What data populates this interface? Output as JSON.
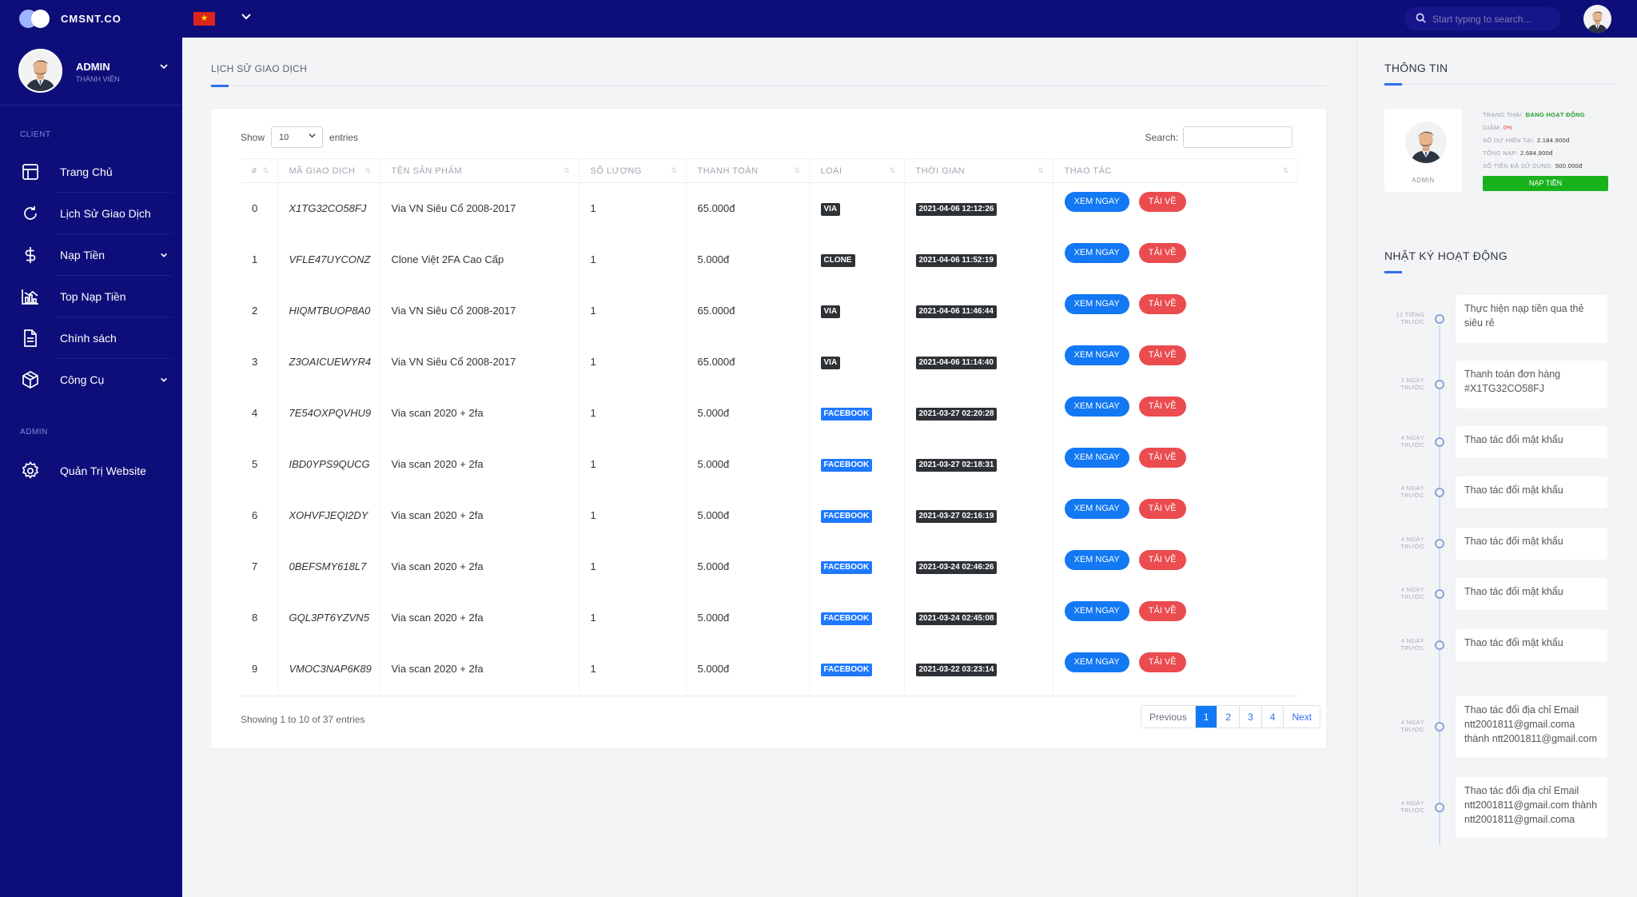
{
  "app": {
    "brand": "CMSNT.CO",
    "search_placeholder": "Start typing to search...",
    "flag_glyph": "★"
  },
  "sidebar": {
    "user_name": "ADMIN",
    "user_role": "THÀNH VIÊN",
    "section_client": "CLIENT",
    "section_admin": "ADMIN",
    "items": [
      {
        "label": "Trang Chủ",
        "icon": "layout-icon"
      },
      {
        "label": "Lịch Sử Giao Dịch",
        "icon": "refresh-icon"
      },
      {
        "label": "Nạp Tiền",
        "icon": "dollar-icon",
        "has_submenu": true
      },
      {
        "label": "Top Nạp Tiền",
        "icon": "bar-chart-icon"
      },
      {
        "label": "Chính sách",
        "icon": "document-icon"
      },
      {
        "label": "Công Cụ",
        "icon": "box-icon",
        "has_submenu": true
      }
    ],
    "admin_items": [
      {
        "label": "Quản Trị Website",
        "icon": "gear-icon"
      }
    ]
  },
  "main": {
    "page_title": "LỊCH SỬ GIAO DỊCH",
    "length_label_pre": "Show",
    "length_value": "10",
    "length_label_post": "entries",
    "search_label": "Search:",
    "columns": [
      "#",
      "MÃ GIAO DỊCH",
      "TÊN SẢN PHẨM",
      "SỐ LƯỢNG",
      "THANH TOÁN",
      "LOẠI",
      "THỜI GIAN",
      "THAO TÁC"
    ],
    "view_label": "XEM NGAY",
    "download_label": "TẢI VỀ",
    "rows": [
      {
        "idx": "0",
        "code": "X1TG32CO58FJ",
        "name": "Via VN Siêu Cổ 2008-2017",
        "qty": "1",
        "pay": "65.000đ",
        "type": "VIA",
        "type_style": "dark",
        "time": "2021-04-06 12:12:26"
      },
      {
        "idx": "1",
        "code": "VFLE47UYCONZ",
        "name": "Clone Việt 2FA Cao Cấp",
        "qty": "1",
        "pay": "5.000đ",
        "type": "CLONE",
        "type_style": "dark",
        "time": "2021-04-06 11:52:19"
      },
      {
        "idx": "2",
        "code": "HIQMTBUOP8A0",
        "name": "Via VN Siêu Cổ 2008-2017",
        "qty": "1",
        "pay": "65.000đ",
        "type": "VIA",
        "type_style": "dark",
        "time": "2021-04-06 11:46:44"
      },
      {
        "idx": "3",
        "code": "Z3OAICUEWYR4",
        "name": "Via VN Siêu Cổ 2008-2017",
        "qty": "1",
        "pay": "65.000đ",
        "type": "VIA",
        "type_style": "dark",
        "time": "2021-04-06 11:14:40"
      },
      {
        "idx": "4",
        "code": "7E54OXPQVHU9",
        "name": "Via scan 2020 + 2fa",
        "qty": "1",
        "pay": "5.000đ",
        "type": "FACEBOOK",
        "type_style": "blue",
        "time": "2021-03-27 02:20:28"
      },
      {
        "idx": "5",
        "code": "IBD0YPS9QUCG",
        "name": "Via scan 2020 + 2fa",
        "qty": "1",
        "pay": "5.000đ",
        "type": "FACEBOOK",
        "type_style": "blue",
        "time": "2021-03-27 02:18:31"
      },
      {
        "idx": "6",
        "code": "XOHVFJEQI2DY",
        "name": "Via scan 2020 + 2fa",
        "qty": "1",
        "pay": "5.000đ",
        "type": "FACEBOOK",
        "type_style": "blue",
        "time": "2021-03-27 02:16:19"
      },
      {
        "idx": "7",
        "code": "0BEFSMY618L7",
        "name": "Via scan 2020 + 2fa",
        "qty": "1",
        "pay": "5.000đ",
        "type": "FACEBOOK",
        "type_style": "blue",
        "time": "2021-03-24 02:46:26"
      },
      {
        "idx": "8",
        "code": "GQL3PT6YZVN5",
        "name": "Via scan 2020 + 2fa",
        "qty": "1",
        "pay": "5.000đ",
        "type": "FACEBOOK",
        "type_style": "blue",
        "time": "2021-03-24 02:45:08"
      },
      {
        "idx": "9",
        "code": "VMOC3NAP6K89",
        "name": "Via scan 2020 + 2fa",
        "qty": "1",
        "pay": "5.000đ",
        "type": "FACEBOOK",
        "type_style": "blue",
        "time": "2021-03-22 03:23:14"
      }
    ],
    "info_text": "Showing 1 to 10 of 37 entries",
    "pagination": {
      "previous": "Previous",
      "pages": [
        "1",
        "2",
        "3",
        "4"
      ],
      "active_page": "1",
      "next": "Next"
    }
  },
  "right_panel": {
    "info_title": "THÔNG TIN",
    "profile_name": "ADMIN",
    "status_label": "TRẠNG THÁI:",
    "status_value": "ĐANG HOẠT ĐỘNG",
    "discount_label": "GIẢM:",
    "discount_value": "0%",
    "balance_label": "SỐ DƯ HIỆN TẠI:",
    "balance_value": "2.184.900đ",
    "total_topup_label": "TỔNG NẠP:",
    "total_topup_value": "2.684.900đ",
    "spent_label": "SỐ TIỀN ĐÃ SỬ DỤNG:",
    "spent_value": "500.000đ",
    "topup_button": "NẠP TIỀN",
    "log_title": "NHẬT KÝ HOẠT ĐỘNG",
    "activity": [
      {
        "time_a": "12 TIẾNG",
        "time_b": "TRƯỚC",
        "text": "Thực hiện nạp tiền qua thẻ siêu rẻ"
      },
      {
        "time_a": "2 NGÀY",
        "time_b": "TRƯỚC",
        "text": "Thanh toán đơn hàng #X1TG32CO58FJ"
      },
      {
        "time_a": "4 NGÀY",
        "time_b": "TRƯỚC",
        "text": "Thao tác đổi mật khẩu"
      },
      {
        "time_a": "4 NGÀY",
        "time_b": "TRƯỚC",
        "text": "Thao tác đổi mật khẩu"
      },
      {
        "time_a": "4 NGÀY",
        "time_b": "TRƯỚC",
        "text": "Thao tác đổi mật khẩu"
      },
      {
        "time_a": "4 NGÀY",
        "time_b": "TRƯỚC",
        "text": "Thao tác đổi mật khẩu"
      },
      {
        "time_a": "4 NGÀY",
        "time_b": "TRƯỚC",
        "text": "Thao tác đổi mật khẩu"
      },
      {
        "time_a": "4 NGÀY",
        "time_b": "TRƯỚC",
        "text": "Thao tác đổi địa chỉ Email ntt2001811@gmail.coma thành ntt2001811@gmail.com"
      },
      {
        "time_a": "4 NGÀY",
        "time_b": "TRƯỚC",
        "text": "Thao tác đổi địa chỉ Email ntt2001811@gmail.com thành ntt2001811@gmail.coma"
      }
    ]
  },
  "colors": {
    "navy": "#0e0e7a",
    "accent_blue": "#1278f3",
    "danger_red": "#ea4c4f",
    "success_green": "#19b21d"
  }
}
